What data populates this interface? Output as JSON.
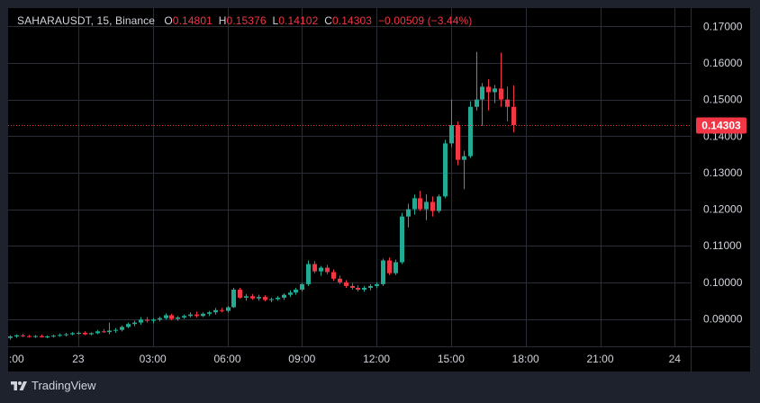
{
  "legend": {
    "symbol": "SAHARAUSDT, 15, Binance",
    "o_label": "O",
    "o_value": "0.14801",
    "h_label": "H",
    "h_value": "0.15376",
    "l_label": "L",
    "l_value": "0.14102",
    "c_label": "C",
    "c_value": "0.14303",
    "change": "−0.00509 (−3.44%)"
  },
  "brand": {
    "name": "TradingView",
    "icon": "tradingview-logo-icon"
  },
  "colors": {
    "up": "#22ab94",
    "down": "#f23645",
    "grid": "#2a2e39",
    "text": "#d1d4dc"
  },
  "chart_data": {
    "type": "candlestick",
    "ylim": [
      0.0825,
      0.175
    ],
    "y_ticks": [
      0.09,
      0.1,
      0.11,
      0.12,
      0.13,
      0.14,
      0.15,
      0.16,
      0.17
    ],
    "y_tick_labels": [
      "0.09000",
      "0.10000",
      "0.11000",
      "0.12000",
      "0.13000",
      "0.14000",
      "0.15000",
      "0.16000",
      "0.17000"
    ],
    "x_tick_labels": [
      ":00",
      "23",
      "03:00",
      "06:00",
      "09:00",
      "12:00",
      "15:00",
      "18:00",
      "21:00",
      "24"
    ],
    "x_tick_index": [
      -1,
      11,
      23,
      35,
      47,
      59,
      71,
      83,
      95,
      107
    ],
    "last_price": 0.14303,
    "last_price_label": "0.14303",
    "candles": [
      [
        0.0848,
        0.0855,
        0.0843,
        0.0852
      ],
      [
        0.0852,
        0.0858,
        0.0848,
        0.0855
      ],
      [
        0.0855,
        0.0859,
        0.085,
        0.0853
      ],
      [
        0.0853,
        0.0856,
        0.0849,
        0.0851
      ],
      [
        0.0851,
        0.0856,
        0.0848,
        0.0853
      ],
      [
        0.0853,
        0.0857,
        0.0849,
        0.085
      ],
      [
        0.085,
        0.0855,
        0.0847,
        0.0852
      ],
      [
        0.0852,
        0.0857,
        0.0849,
        0.0854
      ],
      [
        0.0854,
        0.086,
        0.0851,
        0.0856
      ],
      [
        0.0856,
        0.0862,
        0.0852,
        0.0858
      ],
      [
        0.0858,
        0.0864,
        0.0855,
        0.0861
      ],
      [
        0.0861,
        0.0866,
        0.0857,
        0.0862
      ],
      [
        0.0862,
        0.0866,
        0.0855,
        0.0858
      ],
      [
        0.0858,
        0.0863,
        0.0855,
        0.0861
      ],
      [
        0.0861,
        0.087,
        0.0858,
        0.0866
      ],
      [
        0.0866,
        0.0872,
        0.0862,
        0.0864
      ],
      [
        0.0864,
        0.089,
        0.0858,
        0.0868
      ],
      [
        0.0868,
        0.0875,
        0.0862,
        0.087
      ],
      [
        0.087,
        0.0882,
        0.0866,
        0.0878
      ],
      [
        0.0878,
        0.089,
        0.0875,
        0.0886
      ],
      [
        0.0886,
        0.0895,
        0.088,
        0.089
      ],
      [
        0.089,
        0.0905,
        0.0884,
        0.0898
      ],
      [
        0.0898,
        0.0905,
        0.089,
        0.0895
      ],
      [
        0.0895,
        0.0902,
        0.0888,
        0.0898
      ],
      [
        0.0898,
        0.0906,
        0.0893,
        0.0902
      ],
      [
        0.0902,
        0.0915,
        0.0898,
        0.091
      ],
      [
        0.091,
        0.0914,
        0.0896,
        0.09
      ],
      [
        0.09,
        0.0908,
        0.0895,
        0.0904
      ],
      [
        0.0904,
        0.0912,
        0.09,
        0.0908
      ],
      [
        0.0908,
        0.0918,
        0.0904,
        0.0912
      ],
      [
        0.0912,
        0.092,
        0.0904,
        0.0908
      ],
      [
        0.0908,
        0.0918,
        0.0905,
        0.0914
      ],
      [
        0.0914,
        0.0922,
        0.0908,
        0.0918
      ],
      [
        0.0918,
        0.093,
        0.0912,
        0.0924
      ],
      [
        0.0924,
        0.093,
        0.0918,
        0.0922
      ],
      [
        0.0922,
        0.0935,
        0.0918,
        0.0932
      ],
      [
        0.0932,
        0.0985,
        0.093,
        0.098
      ],
      [
        0.098,
        0.0985,
        0.0955,
        0.0958
      ],
      [
        0.0958,
        0.0968,
        0.095,
        0.0962
      ],
      [
        0.0962,
        0.0968,
        0.0952,
        0.0956
      ],
      [
        0.0956,
        0.0966,
        0.095,
        0.096
      ],
      [
        0.096,
        0.0965,
        0.0948,
        0.0952
      ],
      [
        0.0952,
        0.0958,
        0.0946,
        0.0954
      ],
      [
        0.0954,
        0.0962,
        0.095,
        0.0958
      ],
      [
        0.0958,
        0.097,
        0.0952,
        0.0966
      ],
      [
        0.0966,
        0.0978,
        0.096,
        0.0972
      ],
      [
        0.0972,
        0.0985,
        0.0966,
        0.098
      ],
      [
        0.098,
        0.0998,
        0.0975,
        0.0995
      ],
      [
        0.0995,
        0.106,
        0.099,
        0.105
      ],
      [
        0.105,
        0.1058,
        0.1025,
        0.103
      ],
      [
        0.103,
        0.1045,
        0.1018,
        0.104
      ],
      [
        0.104,
        0.1048,
        0.1022,
        0.1028
      ],
      [
        0.1028,
        0.1035,
        0.1004,
        0.101
      ],
      [
        0.101,
        0.1018,
        0.0995,
        0.1
      ],
      [
        0.1,
        0.1006,
        0.0985,
        0.099
      ],
      [
        0.099,
        0.0998,
        0.098,
        0.0985
      ],
      [
        0.0985,
        0.0992,
        0.0975,
        0.098
      ],
      [
        0.098,
        0.099,
        0.0974,
        0.0985
      ],
      [
        0.0985,
        0.0995,
        0.0978,
        0.099
      ],
      [
        0.099,
        0.1,
        0.0984,
        0.0995
      ],
      [
        0.0995,
        0.1065,
        0.099,
        0.106
      ],
      [
        0.106,
        0.1068,
        0.102,
        0.1025
      ],
      [
        0.1025,
        0.1062,
        0.102,
        0.1055
      ],
      [
        0.1055,
        0.119,
        0.105,
        0.118
      ],
      [
        0.118,
        0.1215,
        0.115,
        0.12
      ],
      [
        0.12,
        0.124,
        0.1185,
        0.123
      ],
      [
        0.123,
        0.125,
        0.1195,
        0.12
      ],
      [
        0.12,
        0.124,
        0.117,
        0.122
      ],
      [
        0.122,
        0.1235,
        0.118,
        0.1195
      ],
      [
        0.1195,
        0.124,
        0.119,
        0.1235
      ],
      [
        0.1235,
        0.139,
        0.123,
        0.138
      ],
      [
        0.138,
        0.15,
        0.137,
        0.143
      ],
      [
        0.143,
        0.144,
        0.132,
        0.1335
      ],
      [
        0.1335,
        0.136,
        0.1255,
        0.1345
      ],
      [
        0.1345,
        0.1495,
        0.134,
        0.148
      ],
      [
        0.148,
        0.163,
        0.147,
        0.15
      ],
      [
        0.15,
        0.1545,
        0.1428,
        0.1535
      ],
      [
        0.1535,
        0.1555,
        0.147,
        0.152
      ],
      [
        0.152,
        0.154,
        0.149,
        0.153
      ],
      [
        0.153,
        0.1628,
        0.148,
        0.15
      ],
      [
        0.15,
        0.1535,
        0.144,
        0.148
      ],
      [
        0.148,
        0.1538,
        0.141,
        0.143
      ]
    ]
  }
}
